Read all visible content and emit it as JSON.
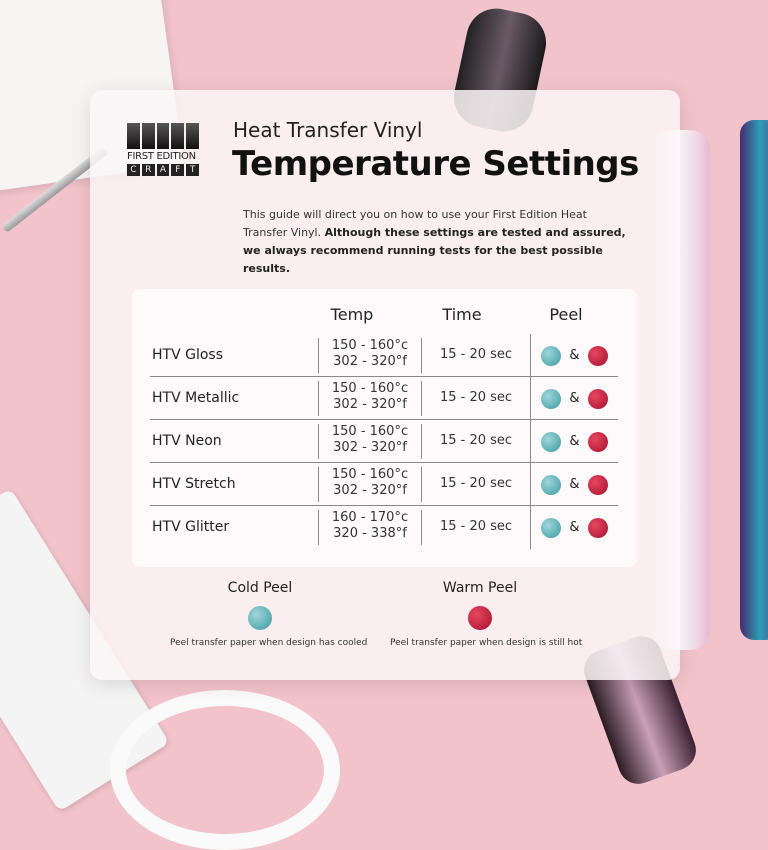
{
  "brand": {
    "logo_line1": "FIRST EDITION",
    "logo_line2": [
      "C",
      "R",
      "A",
      "F",
      "T"
    ]
  },
  "header": {
    "subtitle": "Heat Transfer Vinyl",
    "title": "Temperature Settings"
  },
  "intro": {
    "plain": "This guide will direct you on how to use your First Edition Heat Transfer Vinyl. ",
    "bold": "Although these settings are tested and assured, we always recommend running tests for the best possible results."
  },
  "table": {
    "headers": {
      "temp": "Temp",
      "time": "Time",
      "peel": "Peel"
    },
    "peel_joiner": "&",
    "rows": [
      {
        "name": "HTV Gloss",
        "temp_c": "150 - 160°c",
        "temp_f": "302 - 320°f",
        "time": "15 - 20 sec"
      },
      {
        "name": "HTV Metallic",
        "temp_c": "150 - 160°c",
        "temp_f": "302 - 320°f",
        "time": "15 - 20 sec"
      },
      {
        "name": "HTV Neon",
        "temp_c": "150 - 160°c",
        "temp_f": "302 - 320°f",
        "time": "15 - 20 sec"
      },
      {
        "name": "HTV Stretch",
        "temp_c": "150 - 160°c",
        "temp_f": "302 - 320°f",
        "time": "15 - 20 sec"
      },
      {
        "name": "HTV Glitter",
        "temp_c": "160 - 170°c",
        "temp_f": "320 - 338°f",
        "time": "15 - 20 sec"
      }
    ]
  },
  "legend": {
    "cold": {
      "label": "Cold Peel",
      "desc": "Peel transfer paper when design has cooled",
      "color": "#4aa7ad"
    },
    "warm": {
      "label": "Warm Peel",
      "desc": "Peel transfer paper when design is still hot",
      "color": "#c2183a"
    }
  }
}
